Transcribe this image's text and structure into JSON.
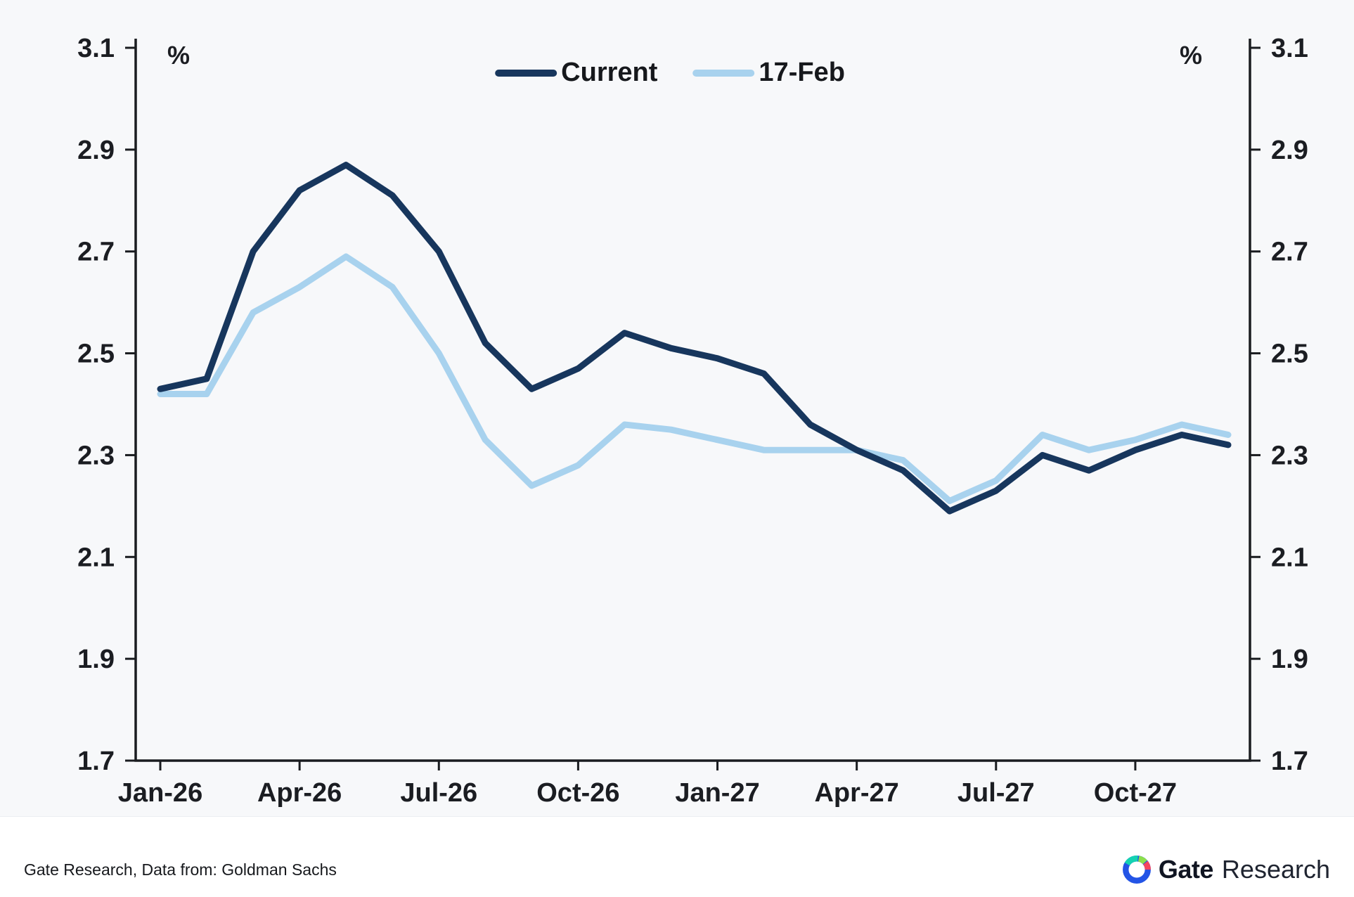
{
  "chart_data": {
    "type": "line",
    "title": "",
    "unit_left": "%",
    "unit_right": "%",
    "ylim": [
      1.7,
      3.1
    ],
    "y_ticks": [
      1.7,
      1.9,
      2.1,
      2.3,
      2.5,
      2.7,
      2.9,
      3.1
    ],
    "grid": false,
    "legend_position": "top-center",
    "x": [
      "Jan-26",
      "Feb-26",
      "Mar-26",
      "Apr-26",
      "May-26",
      "Jun-26",
      "Jul-26",
      "Aug-26",
      "Sep-26",
      "Oct-26",
      "Nov-26",
      "Dec-26",
      "Jan-27",
      "Feb-27",
      "Mar-27",
      "Apr-27",
      "May-27",
      "Jun-27",
      "Jul-27",
      "Aug-27",
      "Sep-27",
      "Oct-27",
      "Nov-27",
      "Dec-27"
    ],
    "x_tick_indices": [
      0,
      3,
      6,
      9,
      12,
      15,
      18,
      21
    ],
    "x_tick_labels": [
      "Jan-26",
      "Apr-26",
      "Jul-26",
      "Oct-26",
      "Jan-27",
      "Apr-27",
      "Jul-27",
      "Oct-27"
    ],
    "series": [
      {
        "name": "Current",
        "color": "#17365d",
        "width": 9,
        "values": [
          2.43,
          2.45,
          2.7,
          2.82,
          2.87,
          2.81,
          2.7,
          2.52,
          2.43,
          2.47,
          2.54,
          2.51,
          2.49,
          2.46,
          2.36,
          2.31,
          2.27,
          2.19,
          2.23,
          2.3,
          2.27,
          2.31,
          2.34,
          2.32
        ]
      },
      {
        "name": "17-Feb",
        "color": "#a8d2ee",
        "width": 9,
        "values": [
          2.42,
          2.42,
          2.58,
          2.63,
          2.69,
          2.63,
          2.5,
          2.33,
          2.24,
          2.28,
          2.36,
          2.35,
          2.33,
          2.31,
          2.31,
          2.31,
          2.29,
          2.21,
          2.25,
          2.34,
          2.31,
          2.33,
          2.36,
          2.34
        ]
      }
    ]
  },
  "colors": {
    "axis": "#1a1c20",
    "background": "#f7f8fa",
    "footer_background": "#ffffff",
    "brand_blue": "#2354e6",
    "brand_teal": "#14d3b2",
    "brand_green": "#8ce04b",
    "brand_red": "#f5465d"
  },
  "footer": {
    "source": "Gate Research, Data from: Goldman Sachs",
    "brand_bold": "Gate",
    "brand_regular": "Research"
  }
}
